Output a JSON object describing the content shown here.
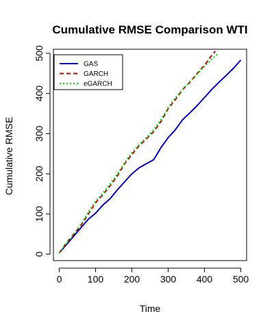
{
  "chart_data": {
    "type": "line",
    "title": "Cumulative RMSE Comparison WTI",
    "xlabel": "Time",
    "ylabel": "Cumulative RMSE",
    "xlim": [
      -16,
      516
    ],
    "ylim": [
      -16,
      510
    ],
    "x_ticks": [
      0,
      100,
      200,
      300,
      400,
      500
    ],
    "y_ticks": [
      0,
      100,
      200,
      300,
      400,
      500
    ],
    "x_tick_labels": [
      "0",
      "100",
      "200",
      "300",
      "400",
      "500"
    ],
    "y_tick_labels": [
      "0",
      "100",
      "200",
      "300",
      "400",
      "500"
    ],
    "grid": false,
    "legend": {
      "position": "top-left",
      "entries": [
        "GAS",
        "GARCH",
        "eGARCH"
      ]
    },
    "series": [
      {
        "name": "GAS",
        "color": "#0000CD",
        "style": "solid",
        "x": [
          0,
          20,
          40,
          60,
          80,
          100,
          120,
          140,
          160,
          180,
          200,
          220,
          240,
          260,
          280,
          300,
          320,
          340,
          360,
          380,
          400,
          420,
          440,
          460,
          480,
          500
        ],
        "y": [
          3,
          24,
          45,
          66,
          87,
          102,
          122,
          138,
          160,
          180,
          200,
          215,
          225,
          235,
          265,
          290,
          310,
          335,
          352,
          370,
          390,
          410,
          428,
          445,
          463,
          483
        ]
      },
      {
        "name": "GARCH",
        "color": "#CC0000",
        "style": "dashed",
        "x": [
          0,
          20,
          40,
          60,
          80,
          100,
          120,
          140,
          160,
          180,
          200,
          220,
          240,
          260,
          280,
          300,
          320,
          340,
          360,
          380,
          400,
          420,
          430
        ],
        "y": [
          3,
          28,
          50,
          72,
          100,
          128,
          148,
          170,
          195,
          225,
          248,
          270,
          287,
          305,
          330,
          362,
          385,
          410,
          428,
          450,
          470,
          495,
          505
        ]
      },
      {
        "name": "eGARCH",
        "color": "#00DD00",
        "style": "dotted",
        "x": [
          0,
          20,
          40,
          60,
          80,
          100,
          120,
          140,
          160,
          180,
          200,
          220,
          240,
          260,
          280,
          300,
          320,
          340,
          360,
          380,
          400,
          420,
          435
        ],
        "y": [
          3,
          28,
          50,
          75,
          105,
          132,
          152,
          175,
          200,
          228,
          253,
          273,
          290,
          310,
          335,
          365,
          390,
          410,
          430,
          448,
          468,
          485,
          498
        ]
      }
    ]
  }
}
